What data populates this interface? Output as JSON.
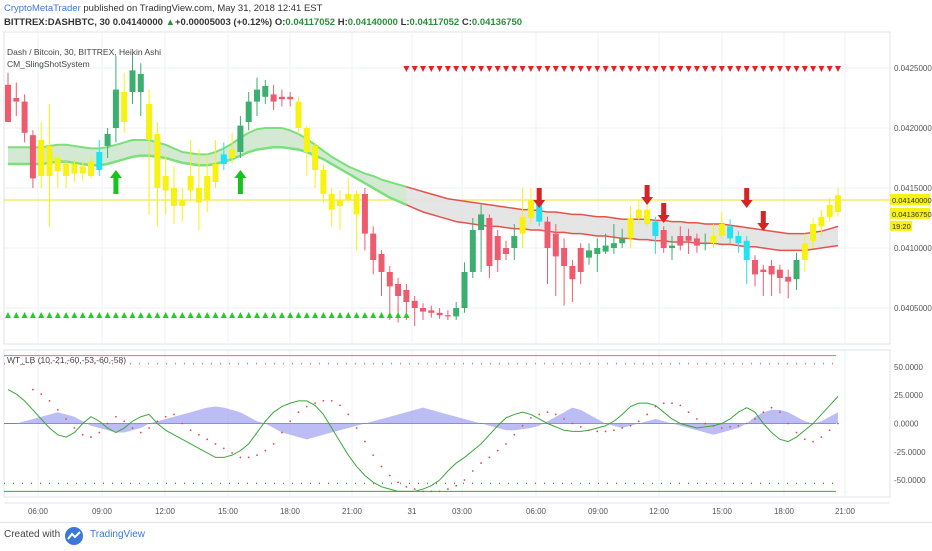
{
  "header": {
    "author": "CryptoMetaTrader",
    "published": " published on TradingView.com, May 31, 2018 12:41 EST",
    "symbol": "BITTREX:DASHBTC, 30",
    "last": "0.04140000",
    "change": "+0.00005003 (+0.12%)",
    "o_label": "O:",
    "o_val": "0.04117052",
    "h_label": "H:",
    "h_val": "0.04140000",
    "l_label": "L:",
    "l_val": "0.04117052",
    "c_label": "C:",
    "c_val": "0.04136750"
  },
  "chart_labels": {
    "main_title": "Dash / Bitcoin, 30, BITTREX, Heikin Ashi",
    "indicator1": "CM_SlingShotSystem",
    "indicator2": "WT_LB (10,-21,-60,-53,-60,-58)",
    "price_label_last": "0.04140000",
    "price_label_close": "0.04136750",
    "countdown": "19:20"
  },
  "footer": {
    "created_with": "Created with",
    "brand": "TradingView"
  },
  "colors": {
    "bull": "#3cae6f",
    "bear": "#ef5b6e",
    "yellow": "#f7f20f",
    "aqua": "#1fe3f0",
    "ema_fast_green": "#7be07b",
    "ema_red": "#e5534b",
    "wt_fill": "#a7a7f3",
    "up_arrow": "#19c21f",
    "down_arrow": "#d42424",
    "triangle_up": "#1fd11f",
    "triangle_down": "#ea1f1f"
  },
  "chart_data": [
    {
      "type": "candlestick",
      "title": "Dash / Bitcoin, 30, BITTREX, Heikin Ashi",
      "x_ticks": [
        "06:00",
        "09:00",
        "12:00",
        "15:00",
        "18:00",
        "21:00",
        "31",
        "03:00",
        "06:00",
        "09:00",
        "12:00",
        "15:00",
        "18:00",
        "21:00"
      ],
      "y_ticks": [
        "0.04250000",
        "0.04200000",
        "0.04150000",
        "0.04100000",
        "0.04050000"
      ],
      "ylim": [
        0.0402,
        0.0428
      ],
      "candles_ohlc_color": [
        [
          0.04205,
          0.04236,
          0.04246,
          0.04228,
          "bear"
        ],
        [
          0.04225,
          0.04222,
          0.04238,
          0.0421,
          "bear"
        ],
        [
          0.04222,
          0.04196,
          0.04228,
          0.04188,
          "bear"
        ],
        [
          0.04194,
          0.04158,
          0.04198,
          0.0415,
          "bear"
        ],
        [
          0.0416,
          0.0419,
          0.04205,
          0.0415,
          "yellow"
        ],
        [
          0.04185,
          0.0416,
          0.0422,
          0.04118,
          "yellow"
        ],
        [
          0.04164,
          0.04175,
          0.04178,
          0.0415,
          "yellow"
        ],
        [
          0.0417,
          0.0416,
          0.04172,
          0.0415,
          "yellow"
        ],
        [
          0.04162,
          0.0417,
          0.04175,
          0.04155,
          "yellow"
        ],
        [
          0.04168,
          0.04162,
          0.04172,
          0.04156,
          "yellow"
        ],
        [
          0.0416,
          0.04172,
          0.04176,
          0.04158,
          "yellow"
        ],
        [
          0.04165,
          0.0418,
          0.0419,
          0.0416,
          "aqua"
        ],
        [
          0.04185,
          0.04195,
          0.042,
          0.04175,
          "bull"
        ],
        [
          0.042,
          0.04232,
          0.0426,
          0.04188,
          "bull"
        ],
        [
          0.04205,
          0.0423,
          0.04246,
          0.04196,
          "yellow"
        ],
        [
          0.0423,
          0.04248,
          0.04262,
          0.0422,
          "bull"
        ],
        [
          0.04245,
          0.0423,
          0.04254,
          0.0421,
          "bull"
        ],
        [
          0.0422,
          0.0419,
          0.04232,
          0.04128,
          "yellow"
        ],
        [
          0.04195,
          0.0415,
          0.04205,
          0.04118,
          "yellow"
        ],
        [
          0.0416,
          0.04148,
          0.04178,
          0.04128,
          "yellow"
        ],
        [
          0.0415,
          0.04135,
          0.04168,
          0.0412,
          "yellow"
        ],
        [
          0.0414,
          0.04135,
          0.0415,
          0.04122,
          "yellow"
        ],
        [
          0.04148,
          0.0416,
          0.0419,
          0.0414,
          "yellow"
        ],
        [
          0.0415,
          0.04138,
          0.04182,
          0.04115,
          "yellow"
        ],
        [
          0.0414,
          0.0416,
          0.04178,
          0.0413,
          "yellow"
        ],
        [
          0.04155,
          0.0417,
          0.0419,
          0.0415,
          "yellow"
        ],
        [
          0.0417,
          0.04178,
          0.04188,
          0.04165,
          "aqua"
        ],
        [
          0.04175,
          0.04182,
          0.04196,
          0.0417,
          "yellow"
        ],
        [
          0.0418,
          0.04202,
          0.0421,
          0.04175,
          "bull"
        ],
        [
          0.04205,
          0.04222,
          0.0423,
          0.04198,
          "bull"
        ],
        [
          0.04222,
          0.04232,
          0.04242,
          0.0421,
          "bull"
        ],
        [
          0.04235,
          0.04226,
          0.0424,
          0.0422,
          "bull"
        ],
        [
          0.04228,
          0.04222,
          0.04236,
          0.04215,
          "bear"
        ],
        [
          0.04224,
          0.04226,
          0.04232,
          0.04218,
          "bear"
        ],
        [
          0.04226,
          0.04224,
          0.0423,
          0.04218,
          "bear"
        ],
        [
          0.04222,
          0.042,
          0.04226,
          0.04195,
          "yellow"
        ],
        [
          0.042,
          0.0418,
          0.04202,
          0.0416,
          "yellow"
        ],
        [
          0.04185,
          0.04165,
          0.04188,
          0.0415,
          "yellow"
        ],
        [
          0.04165,
          0.04145,
          0.0417,
          0.04138,
          "yellow"
        ],
        [
          0.04145,
          0.04132,
          0.0415,
          0.04118,
          "yellow"
        ],
        [
          0.04135,
          0.0414,
          0.04148,
          0.04115,
          "yellow"
        ],
        [
          0.0414,
          0.04145,
          0.04158,
          0.04138,
          "yellow"
        ],
        [
          0.04145,
          0.04128,
          0.04148,
          0.04098,
          "yellow"
        ],
        [
          0.04145,
          0.04112,
          0.0415,
          0.04098,
          "bear"
        ],
        [
          0.04112,
          0.0409,
          0.04118,
          0.04078,
          "bear"
        ],
        [
          0.04095,
          0.0408,
          0.04098,
          0.0406,
          "bear"
        ],
        [
          0.0408,
          0.04068,
          0.04085,
          0.0404,
          "bear"
        ],
        [
          0.0407,
          0.0406,
          0.04075,
          0.04038,
          "bear"
        ],
        [
          0.04065,
          0.04055,
          0.0407,
          0.0404,
          "bear"
        ],
        [
          0.04056,
          0.0405,
          0.0406,
          0.04035,
          "bear"
        ],
        [
          0.0405,
          0.04047,
          0.04054,
          0.0404,
          "bear"
        ],
        [
          0.04048,
          0.04046,
          0.04052,
          0.04042,
          "bear"
        ],
        [
          0.04046,
          0.04044,
          0.0405,
          0.04041,
          "bear"
        ],
        [
          0.04044,
          0.04043,
          0.04048,
          0.0404,
          "bear"
        ],
        [
          0.04043,
          0.0405,
          0.04055,
          0.0404,
          "bull"
        ],
        [
          0.0405,
          0.0408,
          0.04088,
          0.04046,
          "bull"
        ],
        [
          0.0408,
          0.04115,
          0.04125,
          0.04075,
          "bull"
        ],
        [
          0.04115,
          0.04128,
          0.04136,
          0.0408,
          "bull"
        ],
        [
          0.04125,
          0.04085,
          0.04128,
          0.04075,
          "bear"
        ],
        [
          0.0409,
          0.0411,
          0.04115,
          0.0408,
          "bear"
        ],
        [
          0.041,
          0.04095,
          0.04106,
          0.0409,
          "bear"
        ],
        [
          0.041,
          0.0411,
          0.0412,
          0.0409,
          "bull"
        ],
        [
          0.04112,
          0.04126,
          0.0415,
          0.041,
          "yellow"
        ],
        [
          0.04125,
          0.0414,
          0.0415,
          0.0412,
          "yellow"
        ],
        [
          0.0414,
          0.04122,
          0.04146,
          0.04118,
          "aqua"
        ],
        [
          0.04122,
          0.041,
          0.04126,
          0.0407,
          "bear"
        ],
        [
          0.04112,
          0.04093,
          0.0412,
          0.0406,
          "bear"
        ],
        [
          0.041,
          0.04085,
          0.04108,
          0.04052,
          "bear"
        ],
        [
          0.04085,
          0.04074,
          0.0409,
          0.04055,
          "bear"
        ],
        [
          0.0408,
          0.041,
          0.04104,
          0.0407,
          "bear"
        ],
        [
          0.04092,
          0.04098,
          0.04104,
          0.04086,
          "bull"
        ],
        [
          0.04095,
          0.041,
          0.04108,
          0.0408,
          "bull"
        ],
        [
          0.04097,
          0.04102,
          0.04112,
          0.04095,
          "bull"
        ],
        [
          0.041,
          0.04104,
          0.0412,
          0.04095,
          "bull"
        ],
        [
          0.04104,
          0.04108,
          0.04116,
          0.041,
          "bull"
        ],
        [
          0.04108,
          0.04125,
          0.04135,
          0.041,
          "yellow"
        ],
        [
          0.04125,
          0.04132,
          0.0414,
          0.0412,
          "yellow"
        ],
        [
          0.04132,
          0.0412,
          0.04136,
          0.04118,
          "yellow"
        ],
        [
          0.04122,
          0.0411,
          0.04126,
          0.04095,
          "aqua"
        ],
        [
          0.04115,
          0.041,
          0.04118,
          0.04096,
          "bear"
        ],
        [
          0.041,
          0.04102,
          0.0411,
          0.0409,
          "bull"
        ],
        [
          0.04102,
          0.0411,
          0.04118,
          0.04098,
          "bear"
        ],
        [
          0.0411,
          0.04106,
          0.04116,
          0.04095,
          "bear"
        ],
        [
          0.04108,
          0.04102,
          0.04112,
          0.04096,
          "bear"
        ],
        [
          0.04104,
          0.04104,
          0.04112,
          0.04098,
          "bull"
        ],
        [
          0.04104,
          0.0411,
          0.0412,
          0.041,
          "yellow"
        ],
        [
          0.0411,
          0.0412,
          0.0413,
          0.04108,
          "yellow"
        ],
        [
          0.04118,
          0.04108,
          0.04124,
          0.04104,
          "aqua"
        ],
        [
          0.0411,
          0.04104,
          0.04114,
          0.04096,
          "aqua"
        ],
        [
          0.04106,
          0.0409,
          0.0411,
          0.0407,
          "aqua"
        ],
        [
          0.0409,
          0.04078,
          0.04094,
          0.04068,
          "bear"
        ],
        [
          0.04082,
          0.0408,
          0.04086,
          0.0406,
          "bear"
        ],
        [
          0.04085,
          0.04078,
          0.0409,
          0.0406,
          "bear"
        ],
        [
          0.04082,
          0.04075,
          0.04086,
          0.04062,
          "bear"
        ],
        [
          0.04076,
          0.04072,
          0.04082,
          0.04058,
          "bear"
        ],
        [
          0.04074,
          0.0409,
          0.04096,
          0.04065,
          "bull"
        ],
        [
          0.0409,
          0.04104,
          0.04112,
          0.0408,
          "yellow"
        ],
        [
          0.04106,
          0.0412,
          0.04125,
          0.041,
          "yellow"
        ],
        [
          0.04118,
          0.04126,
          0.04132,
          0.0411,
          "yellow"
        ],
        [
          0.04126,
          0.04136,
          0.04142,
          0.04122,
          "yellow"
        ],
        [
          0.0413,
          0.04144,
          0.0415,
          0.04126,
          "yellow"
        ]
      ],
      "ema_band_top": [
        0.04184,
        0.04184,
        0.04184,
        0.04184,
        0.04184,
        0.04185,
        0.04186,
        0.04186,
        0.04185,
        0.04184,
        0.04183,
        0.04183,
        0.04184,
        0.04186,
        0.04188,
        0.0419,
        0.0419,
        0.0419,
        0.04188,
        0.04186,
        0.04183,
        0.0418,
        0.04179,
        0.04178,
        0.04178,
        0.0418,
        0.04183,
        0.04187,
        0.04192,
        0.04196,
        0.04199,
        0.042,
        0.042,
        0.042,
        0.04198,
        0.04195,
        0.04191,
        0.04186,
        0.04181,
        0.04176,
        0.04172,
        0.04168,
        0.04165,
        0.04162,
        0.0416,
        0.04157,
        0.04155,
        0.04153,
        0.04151,
        0.04149,
        0.04147,
        0.04145,
        0.04143,
        0.04141,
        0.0414,
        0.04139,
        0.04138,
        0.04137,
        0.04136,
        0.04135,
        0.04134,
        0.04133,
        0.04132,
        0.04132,
        0.04131,
        0.0413,
        0.0413,
        0.04129,
        0.04128,
        0.04128,
        0.04127,
        0.04126,
        0.04126,
        0.04125,
        0.04124,
        0.04124,
        0.04124,
        0.04124,
        0.04123,
        0.04123,
        0.04122,
        0.04122,
        0.04121,
        0.04121,
        0.0412,
        0.0412,
        0.0412,
        0.04119,
        0.04118,
        0.04117,
        0.04116,
        0.04115,
        0.04114,
        0.04113,
        0.04112,
        0.04112,
        0.04112,
        0.04113,
        0.04114,
        0.04116,
        0.04118
      ],
      "ema_band_bottom": [
        0.0417,
        0.0417,
        0.0417,
        0.0417,
        0.0417,
        0.04171,
        0.04172,
        0.04172,
        0.04171,
        0.0417,
        0.04169,
        0.04169,
        0.0417,
        0.04172,
        0.04174,
        0.04176,
        0.04177,
        0.04177,
        0.04176,
        0.04175,
        0.04173,
        0.04171,
        0.0417,
        0.04169,
        0.04169,
        0.0417,
        0.04172,
        0.04174,
        0.04177,
        0.0418,
        0.04182,
        0.04183,
        0.04184,
        0.04184,
        0.04183,
        0.04182,
        0.0418,
        0.04177,
        0.04174,
        0.0417,
        0.04166,
        0.04162,
        0.04158,
        0.04154,
        0.0415,
        0.04146,
        0.04142,
        0.04139,
        0.04136,
        0.04133,
        0.0413,
        0.04128,
        0.04126,
        0.04124,
        0.04122,
        0.04121,
        0.0412,
        0.04119,
        0.04118,
        0.04118,
        0.04117,
        0.04116,
        0.04116,
        0.04115,
        0.04115,
        0.04114,
        0.04113,
        0.04113,
        0.04112,
        0.04112,
        0.04111,
        0.0411,
        0.0411,
        0.04109,
        0.04108,
        0.04108,
        0.04107,
        0.04107,
        0.04106,
        0.04106,
        0.04105,
        0.04105,
        0.04105,
        0.04104,
        0.04104,
        0.04104,
        0.04103,
        0.04103,
        0.04102,
        0.04101,
        0.04101,
        0.041,
        0.04099,
        0.04098,
        0.04098,
        0.04098,
        0.04098,
        0.04099,
        0.041,
        0.04101,
        0.04102
      ],
      "up_arrows_at_candle": [
        13,
        28
      ],
      "down_arrows_at_candle": [
        64,
        77,
        79,
        89,
        91
      ],
      "triangle_up_candle_range": [
        0,
        48
      ],
      "triangle_down_candle_range": [
        48,
        100
      ],
      "current_price": 0.0414
    },
    {
      "type": "line",
      "title": "WT_LB (10,-21,-60,-53,-60,-58)",
      "y_ticks": [
        "50.0000",
        "25.0000",
        "0.0000",
        "-25.0000",
        "-50.0000"
      ],
      "ylim": [
        -65,
        65
      ],
      "levels": [
        60,
        53,
        0,
        -53,
        -60
      ],
      "wt1": [
        30,
        26,
        20,
        12,
        4,
        -4,
        -10,
        -12,
        -8,
        0,
        6,
        2,
        -4,
        -8,
        -4,
        2,
        6,
        8,
        0,
        -6,
        -10,
        -14,
        -18,
        -22,
        -26,
        -30,
        -30,
        -28,
        -24,
        -18,
        -8,
        2,
        10,
        15,
        18,
        20,
        20,
        16,
        8,
        -4,
        -16,
        -28,
        -38,
        -46,
        -52,
        -56,
        -58,
        -60,
        -60,
        -60,
        -58,
        -55,
        -50,
        -42,
        -35,
        -30,
        -24,
        -18,
        -10,
        -2,
        5,
        8,
        10,
        8,
        4,
        0,
        -3,
        -6,
        -7,
        -7,
        -6,
        -4,
        -2,
        2,
        8,
        15,
        18,
        18,
        16,
        10,
        4,
        0,
        -2,
        -4,
        -3,
        -2,
        0,
        4,
        10,
        14,
        10,
        0,
        -8,
        -14,
        -16,
        -12,
        -6,
        0,
        8,
        16,
        24
      ],
      "wt_fill_upper": [
        0,
        0,
        2,
        4,
        6,
        8,
        10,
        8,
        6,
        2,
        -2,
        -4,
        -6,
        -8,
        -8,
        -6,
        -4,
        0,
        2,
        4,
        6,
        8,
        10,
        12,
        14,
        15,
        14,
        12,
        10,
        6,
        2,
        0,
        -4,
        -8,
        -10,
        -12,
        -14,
        -12,
        -10,
        -8,
        -6,
        -4,
        -2,
        0,
        2,
        4,
        6,
        8,
        10,
        12,
        14,
        12,
        10,
        8,
        6,
        4,
        2,
        0,
        -2,
        -4,
        -6,
        -6,
        -5,
        -4,
        -2,
        2,
        6,
        10,
        14,
        12,
        8,
        4,
        0,
        -2,
        -4,
        -2,
        0,
        2,
        4,
        2,
        0,
        -2,
        -4,
        -6,
        -8,
        -10,
        -8,
        -6,
        -4,
        0,
        6,
        10,
        12,
        12,
        10,
        6,
        2,
        0,
        2,
        6,
        10
      ]
    }
  ]
}
